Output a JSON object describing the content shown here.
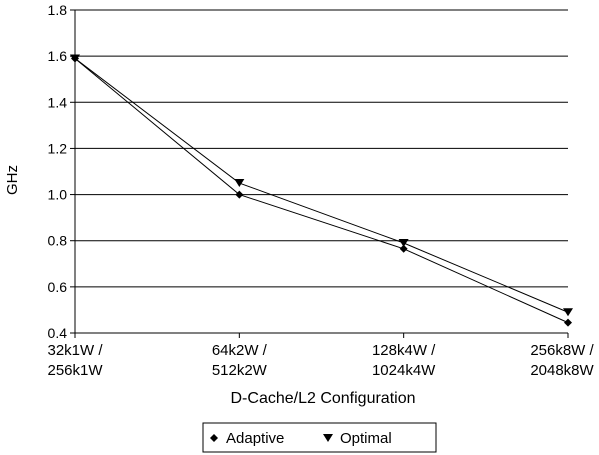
{
  "chart_data": {
    "type": "line",
    "categories": [
      [
        "32k1W /",
        "256k1W"
      ],
      [
        "64k2W /",
        "512k2W"
      ],
      [
        "128k4W /",
        "1024k4W"
      ],
      [
        "256k8W /",
        "2048k8W"
      ]
    ],
    "series": [
      {
        "name": "Adaptive",
        "marker": "diamond",
        "values": [
          1.59,
          1.0,
          0.765,
          0.445
        ]
      },
      {
        "name": "Optimal",
        "marker": "triangle-down",
        "values": [
          1.59,
          1.05,
          0.79,
          0.49
        ]
      }
    ],
    "title": "",
    "xlabel": "D-Cache/L2 Configuration",
    "ylabel": "GHz",
    "ylim": [
      0.4,
      1.8
    ],
    "yticks": [
      "0.4",
      "0.6",
      "0.8",
      "1.0",
      "1.2",
      "1.4",
      "1.6",
      "1.8"
    ],
    "grid": true,
    "legend": "bottom-center",
    "colors": {
      "line": "#000000",
      "grid": "#000000",
      "background": "#ffffff"
    }
  }
}
